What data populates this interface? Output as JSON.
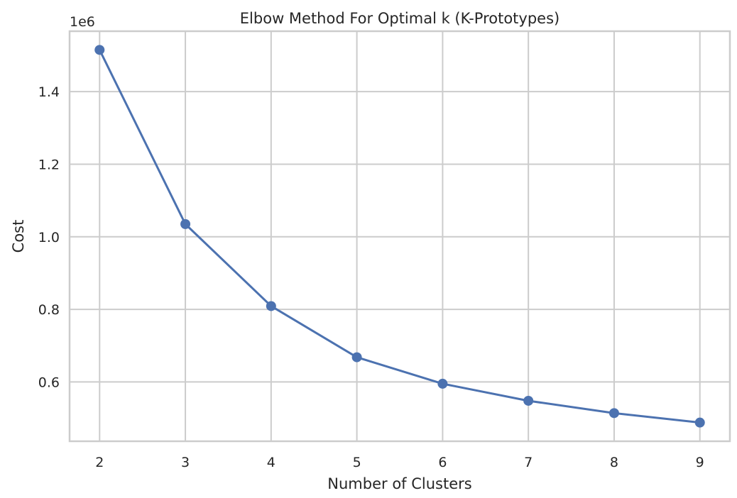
{
  "chart_data": {
    "type": "line",
    "title": "Elbow Method For Optimal k (K-Prototypes)",
    "xlabel": "Number of Clusters",
    "ylabel": "Cost",
    "y_offset_label": "1e6",
    "x": [
      2,
      3,
      4,
      5,
      6,
      7,
      8,
      9
    ],
    "series": [
      {
        "values": [
          1515000,
          1035000,
          809000,
          668000,
          595000,
          548000,
          514000,
          488000
        ],
        "color": "#4c72b0",
        "marker": "circle"
      }
    ],
    "xticks": [
      "2",
      "3",
      "4",
      "5",
      "6",
      "7",
      "8",
      "9"
    ],
    "yticks": [
      {
        "value": 0.6,
        "label": "0.6"
      },
      {
        "value": 0.8,
        "label": "0.8"
      },
      {
        "value": 1.0,
        "label": "1.0"
      },
      {
        "value": 1.2,
        "label": "1.2"
      },
      {
        "value": 1.4,
        "label": "1.4"
      }
    ],
    "xlim": [
      1.65,
      9.35
    ],
    "ylim": [
      0.4365,
      1.5665
    ],
    "grid": true,
    "style": {
      "grid_color": "#cccccc",
      "text_color": "#262626",
      "background": "#ffffff"
    }
  }
}
